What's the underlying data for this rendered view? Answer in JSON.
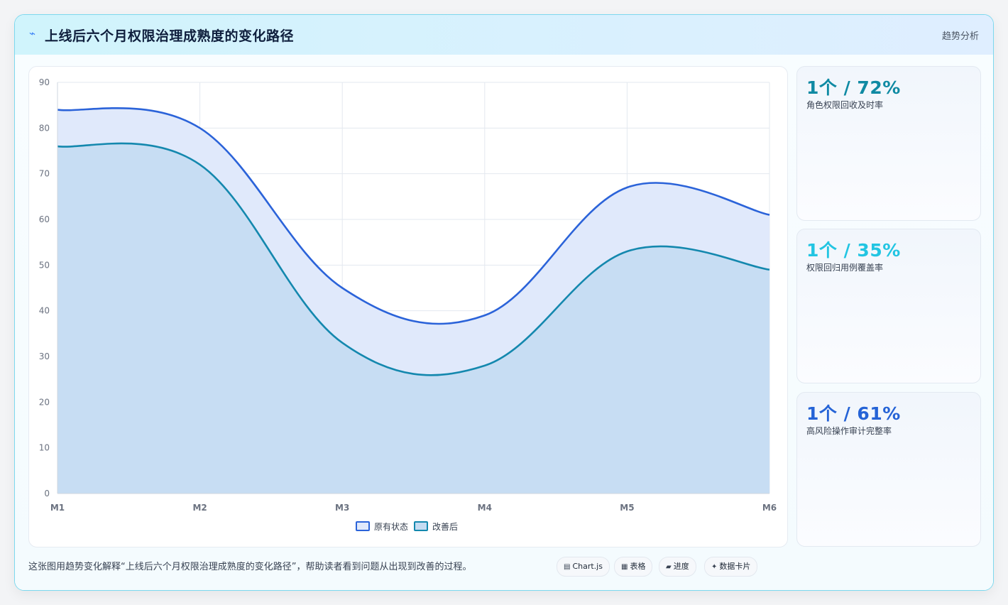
{
  "header": {
    "title": "上线后六个月权限治理成熟度的变化路径",
    "badge": "趋势分析",
    "icon": "lightning-icon"
  },
  "chart_data": {
    "type": "area",
    "categories": [
      "M1",
      "M2",
      "M3",
      "M4",
      "M5",
      "M6"
    ],
    "series": [
      {
        "name": "原有状态",
        "values": [
          84,
          80,
          45,
          39,
          67,
          61
        ],
        "color": "#2b63d9",
        "fill": "#e0e9fb"
      },
      {
        "name": "改善后",
        "values": [
          76,
          72,
          33,
          28,
          53,
          49
        ],
        "color": "#1488ae",
        "fill": "#c5dcf2"
      }
    ],
    "ylim": [
      0,
      90
    ],
    "yticks": [
      0,
      10,
      20,
      30,
      40,
      50,
      60,
      70,
      80,
      90
    ],
    "grid": true,
    "legend_position": "bottom"
  },
  "stats": [
    {
      "value": "1个 / 72%",
      "label": "角色权限回收及时率",
      "color": "#0f8aa3"
    },
    {
      "value": "1个 / 35%",
      "label": "权限回归用例覆盖率",
      "color": "#22c5e2"
    },
    {
      "value": "1个 / 61%",
      "label": "高风险操作审计完整率",
      "color": "#2563d6"
    }
  ],
  "footer": {
    "note": "这张图用趋势变化解释“上线后六个月权限治理成熟度的变化路径”，帮助读者看到问题从出现到改善的过程。",
    "chips": [
      {
        "icon": "chart-icon",
        "glyph": "▤",
        "label": "Chart.js"
      },
      {
        "icon": "table-icon",
        "glyph": "▦",
        "label": "表格"
      },
      {
        "icon": "progress-icon",
        "glyph": "▰",
        "label": "进度"
      },
      {
        "icon": "sparkle-icon",
        "glyph": "✦",
        "label": "数据卡片"
      }
    ]
  }
}
